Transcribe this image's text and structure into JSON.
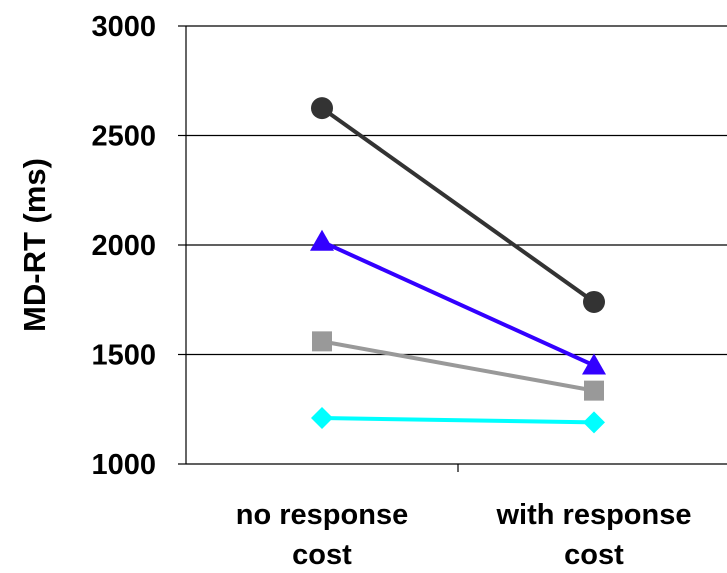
{
  "chart_data": {
    "type": "line",
    "categories": [
      [
        "no response",
        "cost"
      ],
      [
        "with response",
        "cost"
      ]
    ],
    "ylabel": "MD-RT (ms)",
    "ylim": [
      1000,
      3000
    ],
    "yticks": [
      "1000",
      "1500",
      "2000",
      "2500",
      "3000"
    ],
    "grid": true,
    "series": [
      {
        "marker": "circle",
        "color": "#333333",
        "values": [
          2625,
          1740
        ]
      },
      {
        "marker": "triangle",
        "color": "#3300ff",
        "values": [
          2015,
          1450
        ]
      },
      {
        "marker": "square",
        "color": "#999999",
        "values": [
          1560,
          1335
        ]
      },
      {
        "marker": "diamond",
        "color": "#00ffff",
        "values": [
          1210,
          1190
        ]
      }
    ]
  }
}
